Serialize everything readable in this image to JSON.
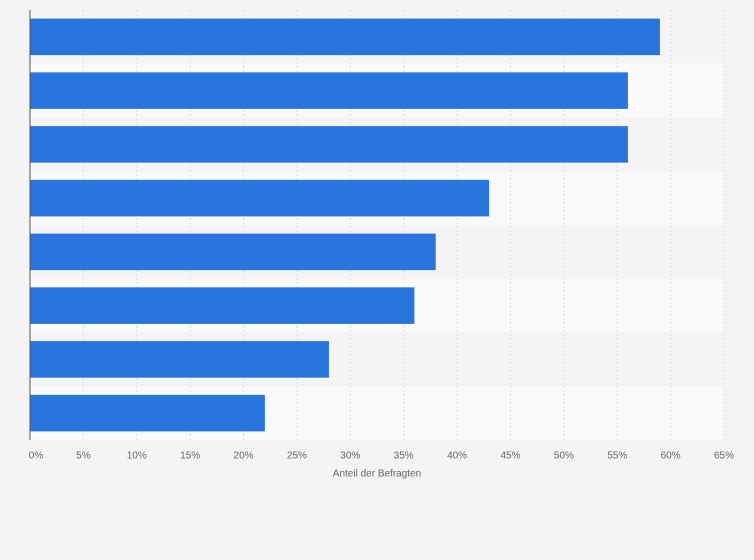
{
  "chart_data": {
    "type": "bar",
    "orientation": "horizontal",
    "xlabel": "Anteil der Befragten",
    "categories": [
      null,
      null,
      null,
      null,
      null,
      null,
      null,
      null
    ],
    "values": [
      59,
      56,
      56,
      43,
      38,
      36,
      28,
      22
    ],
    "color": "#2876dd",
    "xlim": [
      0,
      65
    ],
    "xticks": [
      {
        "value": 0,
        "label": "0%"
      },
      {
        "value": 5,
        "label": "5%"
      },
      {
        "value": 10,
        "label": "10%"
      },
      {
        "value": 15,
        "label": "15%"
      },
      {
        "value": 20,
        "label": "20%"
      },
      {
        "value": 25,
        "label": "25%"
      },
      {
        "value": 30,
        "label": "30%"
      },
      {
        "value": 35,
        "label": "35%"
      },
      {
        "value": 40,
        "label": "40%"
      },
      {
        "value": 45,
        "label": "45%"
      },
      {
        "value": 50,
        "label": "50%"
      },
      {
        "value": 55,
        "label": "55%"
      },
      {
        "value": 60,
        "label": "60%"
      },
      {
        "value": 65,
        "label": "65%"
      }
    ],
    "grid": true
  }
}
